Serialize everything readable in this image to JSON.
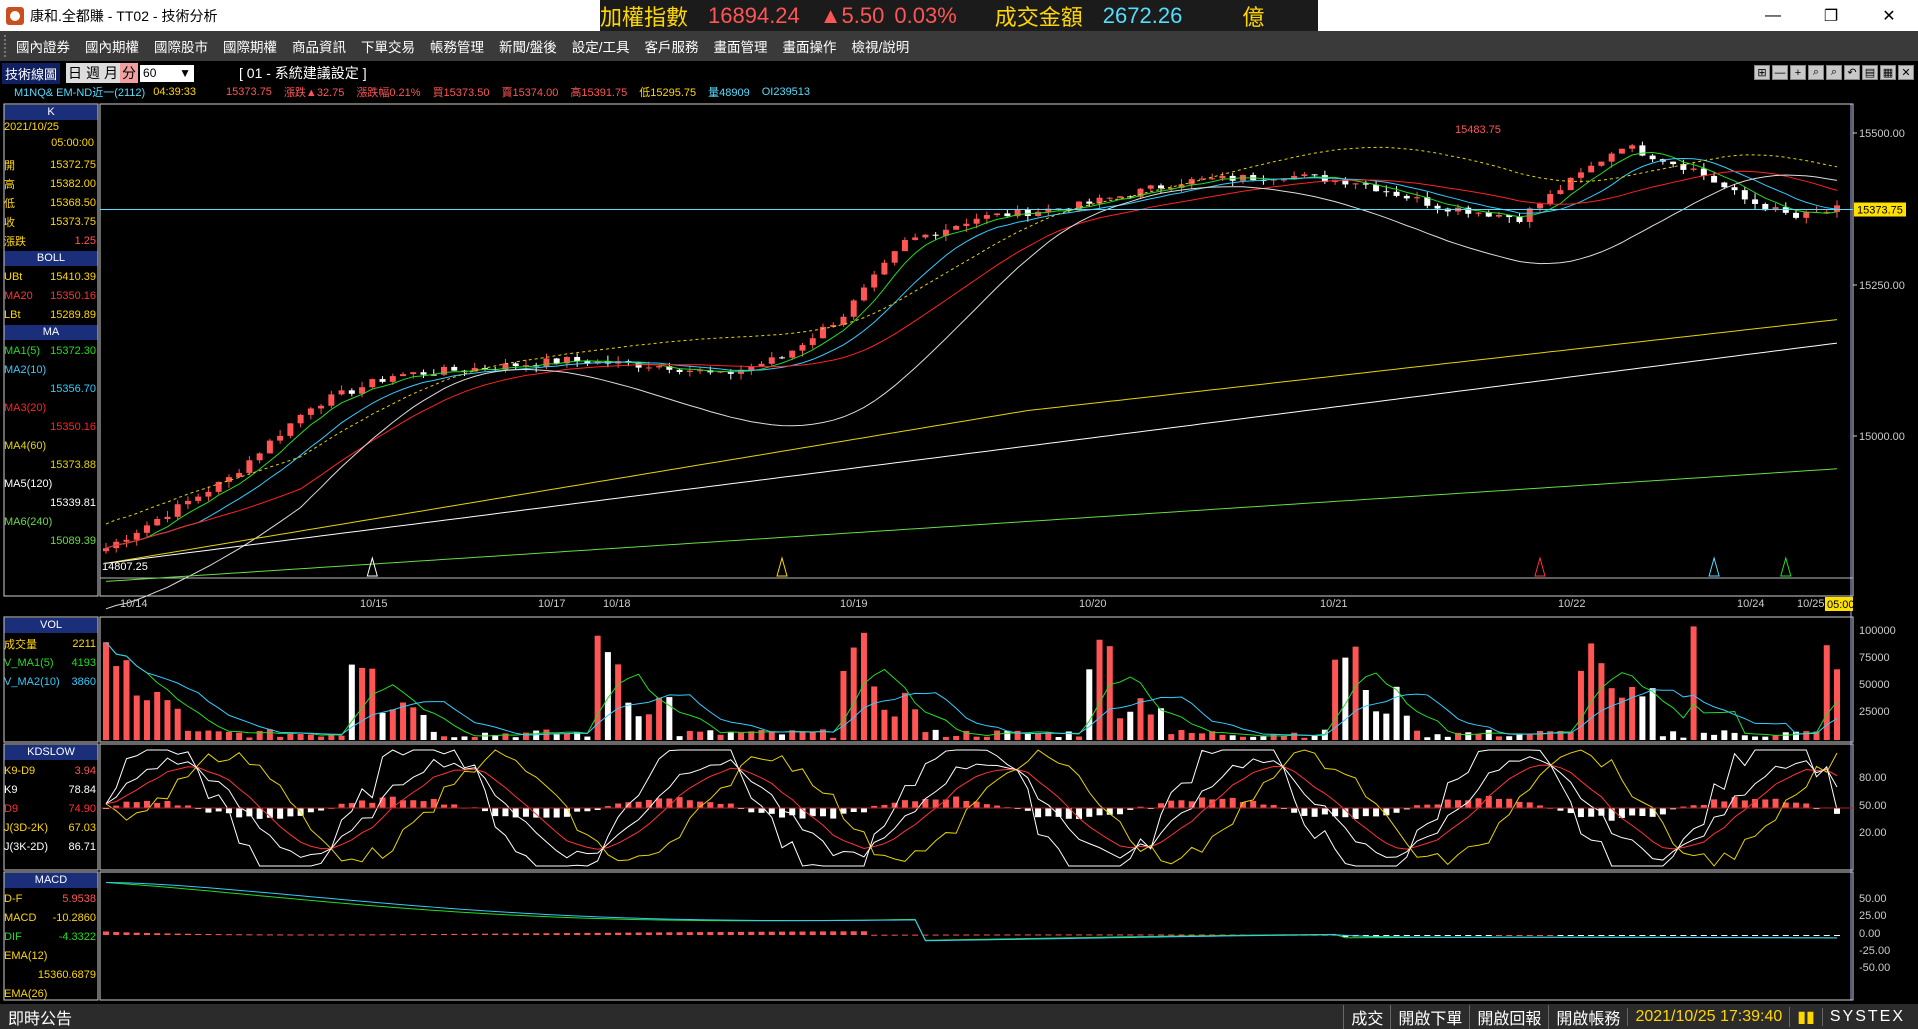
{
  "window": {
    "title": "康和.全都賺 - TT02 - 技術分析",
    "minimize": "—",
    "maximize": "❐",
    "close": "✕"
  },
  "ticker": {
    "label": "加權指數",
    "value": "16894.24",
    "change": "▲5.50",
    "pct": "0.03%",
    "amount_label": "成交金額",
    "amount": "2672.26",
    "unit": "億"
  },
  "menu": [
    "國內證券",
    "國內期權",
    "國際股市",
    "國際期權",
    "商品資訊",
    "下單交易",
    "帳務管理",
    "新聞/盤後",
    "設定/工具",
    "客戶服務",
    "畫面管理",
    "畫面操作",
    "檢視/說明"
  ],
  "toolbar": {
    "tab": "技術線圖",
    "periods": [
      "日",
      "週",
      "月",
      "分"
    ],
    "active_period": "分",
    "interval": "60",
    "setting": "[ 01 - 系統建議設定 ]",
    "icons": [
      "⊞",
      "—",
      "+",
      "⌕",
      "⌕",
      "↶",
      "▤",
      "▦",
      "✕"
    ]
  },
  "info": {
    "symbol": "M1NQ&  EM-ND近一(2112)",
    "time": "04:39:33",
    "price": "15373.75",
    "chg": "漲跌▲32.75",
    "pctchg": "漲跌幅0.21%",
    "bid": "買15373.50",
    "ask": "賣15374.00",
    "high": "高15391.75",
    "low": "低15295.75",
    "vol": "量48909",
    "oi": "OI239513"
  },
  "colors": {
    "up": "#ff5555",
    "down": "#ffffff",
    "ma1": "#22dd22",
    "ma2": "#33ccff",
    "ma3": "#ff2222",
    "ma4": "#e6d400",
    "ma5": "#ffffff",
    "ma6": "#66dd44",
    "boll": "#e6d400",
    "panel": "#1a2e7a"
  },
  "sidebar_k": {
    "head": "K",
    "date": "2021/10/25",
    "time": "05:00:00",
    "rows": [
      {
        "label": "開",
        "value": "15372.75"
      },
      {
        "label": "高",
        "value": "15382.00"
      },
      {
        "label": "低",
        "value": "15368.50"
      },
      {
        "label": "收",
        "value": "15373.75"
      },
      {
        "label": "漲跌",
        "value": "1.25"
      }
    ]
  },
  "sidebar_boll": {
    "head": "BOLL",
    "rows": [
      {
        "label": "UBt",
        "value": "15410.39"
      },
      {
        "label": "MA20",
        "value": "15350.16"
      },
      {
        "label": "LBt",
        "value": "15289.89"
      }
    ]
  },
  "sidebar_ma": {
    "head": "MA",
    "rows": [
      {
        "label": "MA1(5)",
        "value": "15372.30"
      },
      {
        "label": "MA2(10)",
        "value": ""
      },
      {
        "label": "",
        "value": "15356.70"
      },
      {
        "label": "MA3(20)",
        "value": ""
      },
      {
        "label": "",
        "value": "15350.16"
      },
      {
        "label": "MA4(60)",
        "value": ""
      },
      {
        "label": "",
        "value": "15373.88"
      },
      {
        "label": "MA5(120)",
        "value": ""
      },
      {
        "label": "",
        "value": "15339.81"
      },
      {
        "label": "MA6(240)",
        "value": ""
      },
      {
        "label": "",
        "value": "15089.39"
      }
    ]
  },
  "sidebar_vol": {
    "head": "VOL",
    "rows": [
      {
        "label": "成交量",
        "value": "2211"
      },
      {
        "label": "V_MA1(5)",
        "value": "4193"
      },
      {
        "label": "V_MA2(10)",
        "value": "3860"
      }
    ]
  },
  "sidebar_kd": {
    "head": "KDSLOW",
    "rows": [
      {
        "label": "K9-D9",
        "value": "3.94"
      },
      {
        "label": "K9",
        "value": "78.84"
      },
      {
        "label": "D9",
        "value": "74.90"
      },
      {
        "label": "J(3D-2K)",
        "value": "67.03"
      },
      {
        "label": "J(3K-2D)",
        "value": "86.71"
      }
    ]
  },
  "sidebar_macd": {
    "head": "MACD",
    "rows": [
      {
        "label": "D-F",
        "value": "5.9538"
      },
      {
        "label": "MACD",
        "value": "-10.2860"
      },
      {
        "label": "DIF",
        "value": "-4.3322"
      },
      {
        "label": "EMA(12)",
        "value": ""
      },
      {
        "label": "",
        "value": "15360.6879"
      },
      {
        "label": "EMA(26)",
        "value": ""
      }
    ]
  },
  "price_axis": [
    "15500.00",
    "15250.00",
    "15000.00"
  ],
  "last_price_tag": "15373.75",
  "high_label": "15483.75",
  "low_label": "14807.25",
  "date_axis": [
    "10/14",
    "10/15",
    "10/17",
    "10/18",
    "10/19",
    "10/20",
    "10/21",
    "10/22",
    "10/24",
    "10/25",
    "05:00"
  ],
  "vol_axis": [
    "100000",
    "75000",
    "50000",
    "25000"
  ],
  "kd_axis": [
    "80.00",
    "50.00",
    "20.00"
  ],
  "macd_axis": [
    "50.00",
    "25.00",
    "0.00",
    "-25.00",
    "-50.00"
  ],
  "status": {
    "left": "即時公告",
    "buttons": [
      "成交",
      "開啟下單",
      "開啟回報",
      "開啟帳務"
    ],
    "datetime": "2021/10/25 17:39:40",
    "brand": "SYSTEX"
  }
}
